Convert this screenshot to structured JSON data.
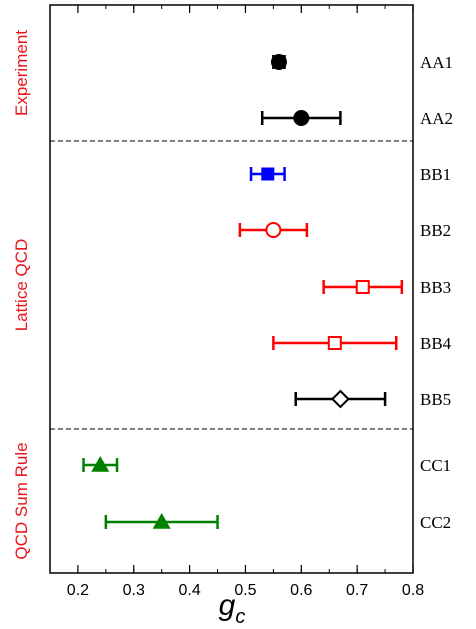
{
  "chart_data": {
    "type": "scatter",
    "xlabel": "g",
    "xlabel_subscript": "c",
    "xlim": [
      0.15,
      0.8
    ],
    "x_ticks": [
      "0.2",
      "0.3",
      "0.4",
      "0.5",
      "0.6",
      "0.7",
      "0.8"
    ],
    "x_tick_values": [
      0.2,
      0.3,
      0.4,
      0.5,
      0.6,
      0.7,
      0.8
    ],
    "groups": [
      {
        "label": "Experiment",
        "color": "#e8161b",
        "rows": [
          0,
          1
        ]
      },
      {
        "label": "Lattice QCD",
        "color": "#e8161b",
        "rows": [
          2,
          6
        ]
      },
      {
        "label": "QCD Sum Rule",
        "color": "#e8161b",
        "rows": [
          7,
          8
        ]
      }
    ],
    "series": [
      {
        "label": "AA1",
        "value": 0.56,
        "err_low": 0.55,
        "err_high": 0.57,
        "marker": "filled-circle",
        "color": "#000000"
      },
      {
        "label": "AA2",
        "value": 0.6,
        "err_low": 0.53,
        "err_high": 0.67,
        "marker": "filled-circle",
        "color": "#000000"
      },
      {
        "label": "BB1",
        "value": 0.54,
        "err_low": 0.51,
        "err_high": 0.57,
        "marker": "filled-square",
        "color": "#0000ff"
      },
      {
        "label": "BB2",
        "value": 0.55,
        "err_low": 0.49,
        "err_high": 0.61,
        "marker": "open-circle",
        "color": "#ff0000"
      },
      {
        "label": "BB3",
        "value": 0.71,
        "err_low": 0.64,
        "err_high": 0.78,
        "marker": "open-square",
        "color": "#ff0000"
      },
      {
        "label": "BB4",
        "value": 0.66,
        "err_low": 0.55,
        "err_high": 0.77,
        "marker": "open-square",
        "color": "#ff0000"
      },
      {
        "label": "BB5",
        "value": 0.67,
        "err_low": 0.59,
        "err_high": 0.75,
        "marker": "open-diamond",
        "color": "#000000"
      },
      {
        "label": "CC1",
        "value": 0.24,
        "err_low": 0.21,
        "err_high": 0.27,
        "marker": "filled-triangle",
        "color": "#008000"
      },
      {
        "label": "CC2",
        "value": 0.35,
        "err_low": 0.25,
        "err_high": 0.45,
        "marker": "filled-triangle",
        "color": "#008000"
      }
    ],
    "separators": "dashed",
    "grid": false
  }
}
